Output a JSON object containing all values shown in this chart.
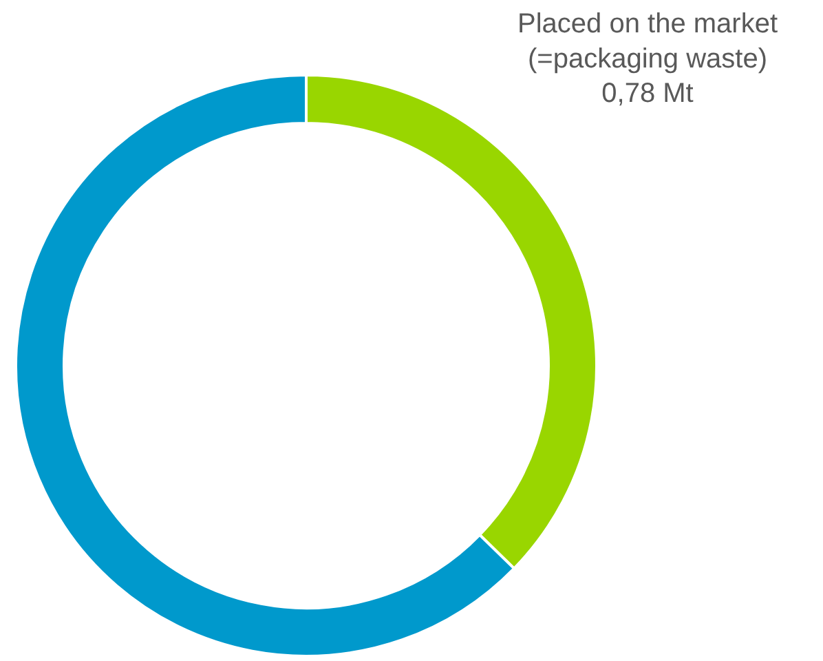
{
  "chart_data": {
    "type": "donut",
    "categories": [
      null,
      null
    ],
    "values": [
      37.3,
      62.7
    ],
    "colors": [
      "#99d600",
      "#0099cc"
    ],
    "annotations": [
      "Placed on the market\n(=packaging waste)\n0,78 Mt"
    ]
  }
}
